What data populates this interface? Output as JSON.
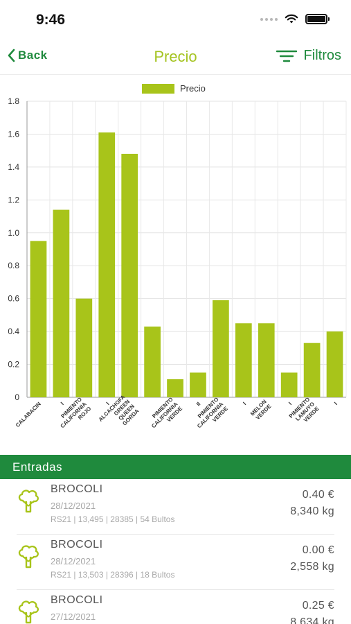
{
  "status_bar": {
    "time": "9:46"
  },
  "nav": {
    "back_label": "Back",
    "title": "Precio",
    "filter_label": "Filtros"
  },
  "colors": {
    "accent_green": "#1f8a3d",
    "bar_lime": "#a8c41a",
    "title_lime": "#a5c422"
  },
  "chart_data": {
    "type": "bar",
    "legend": "Precio",
    "legend_position": "top-center",
    "grid": true,
    "ylim": [
      0,
      1.8
    ],
    "yticks": [
      "0",
      "0.2",
      "0.4",
      "0.6",
      "0.8",
      "1.0",
      "1.2",
      "1.4",
      "1.6",
      "1.8"
    ],
    "categories": [
      [
        "CALABACIN"
      ],
      [
        "I"
      ],
      [
        "PIMIENTO",
        "CALIFORNIA",
        "ROJO"
      ],
      [
        "I"
      ],
      [
        "ALCACHOFA",
        "GREEN",
        "QUEEN",
        "GORDA"
      ],
      [
        ""
      ],
      [
        "PIMIENTO",
        "CALIFORNIA",
        "VERDE"
      ],
      [
        "II"
      ],
      [
        "PIMIENTO",
        "CALIFORNIA",
        "VERDE"
      ],
      [
        "I"
      ],
      [
        "MELON",
        "VERDE"
      ],
      [
        "I"
      ],
      [
        "PIMIENTO",
        "LAMUYO",
        "VERDE"
      ],
      [
        "I"
      ]
    ],
    "values": [
      0.95,
      1.14,
      0.6,
      1.61,
      1.48,
      0.43,
      0.11,
      0.15,
      0.59,
      0.45,
      0.45,
      0.15,
      0.33,
      0.4
    ]
  },
  "list": {
    "header": "Entradas",
    "entries": [
      {
        "name": "BROCOLI",
        "date": "28/12/2021",
        "meta": "RS21 | 13,495 | 28385 | 54 Bultos",
        "price": "0.40 €",
        "weight": "8,340 kg"
      },
      {
        "name": "BROCOLI",
        "date": "28/12/2021",
        "meta": "RS21 | 13,503 | 28396 | 18 Bultos",
        "price": "0.00 €",
        "weight": "2,558 kg"
      },
      {
        "name": "BROCOLI",
        "date": "27/12/2021",
        "meta": "",
        "price": "0.25 €",
        "weight": "8,634 kg"
      }
    ]
  }
}
